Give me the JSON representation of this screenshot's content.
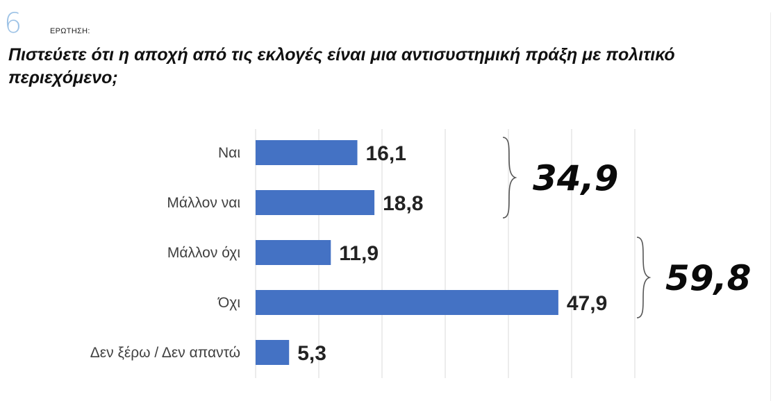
{
  "question": {
    "number": "6",
    "label": "ΕΡΩΤΗΣΗ:",
    "text": "Πιστεύετε ότι η αποχή από τις εκλογές είναι μια αντισυστημική πράξη με πολιτικό περιεχόμενο;"
  },
  "colors": {
    "bar": "#4472c4",
    "grid": "#d9d9d9",
    "number": "#9ec3e6"
  },
  "chart_data": {
    "type": "bar",
    "orientation": "horizontal",
    "categories": [
      "Ναι",
      "Μάλλον ναι",
      "Μάλλον όχι",
      "Όχι",
      "Δεν ξέρω / Δεν απαντώ"
    ],
    "values": [
      16.1,
      18.8,
      11.9,
      47.9,
      5.3
    ],
    "value_labels": [
      "16,1",
      "18,8",
      "11,9",
      "47,9",
      "5,3"
    ],
    "xlim": [
      0,
      60
    ],
    "grid": true,
    "groups": [
      {
        "categories": [
          "Ναι",
          "Μάλλον ναι"
        ],
        "total": "34,9"
      },
      {
        "categories": [
          "Μάλλον όχι",
          "Όχι"
        ],
        "total": "59,8"
      }
    ]
  }
}
